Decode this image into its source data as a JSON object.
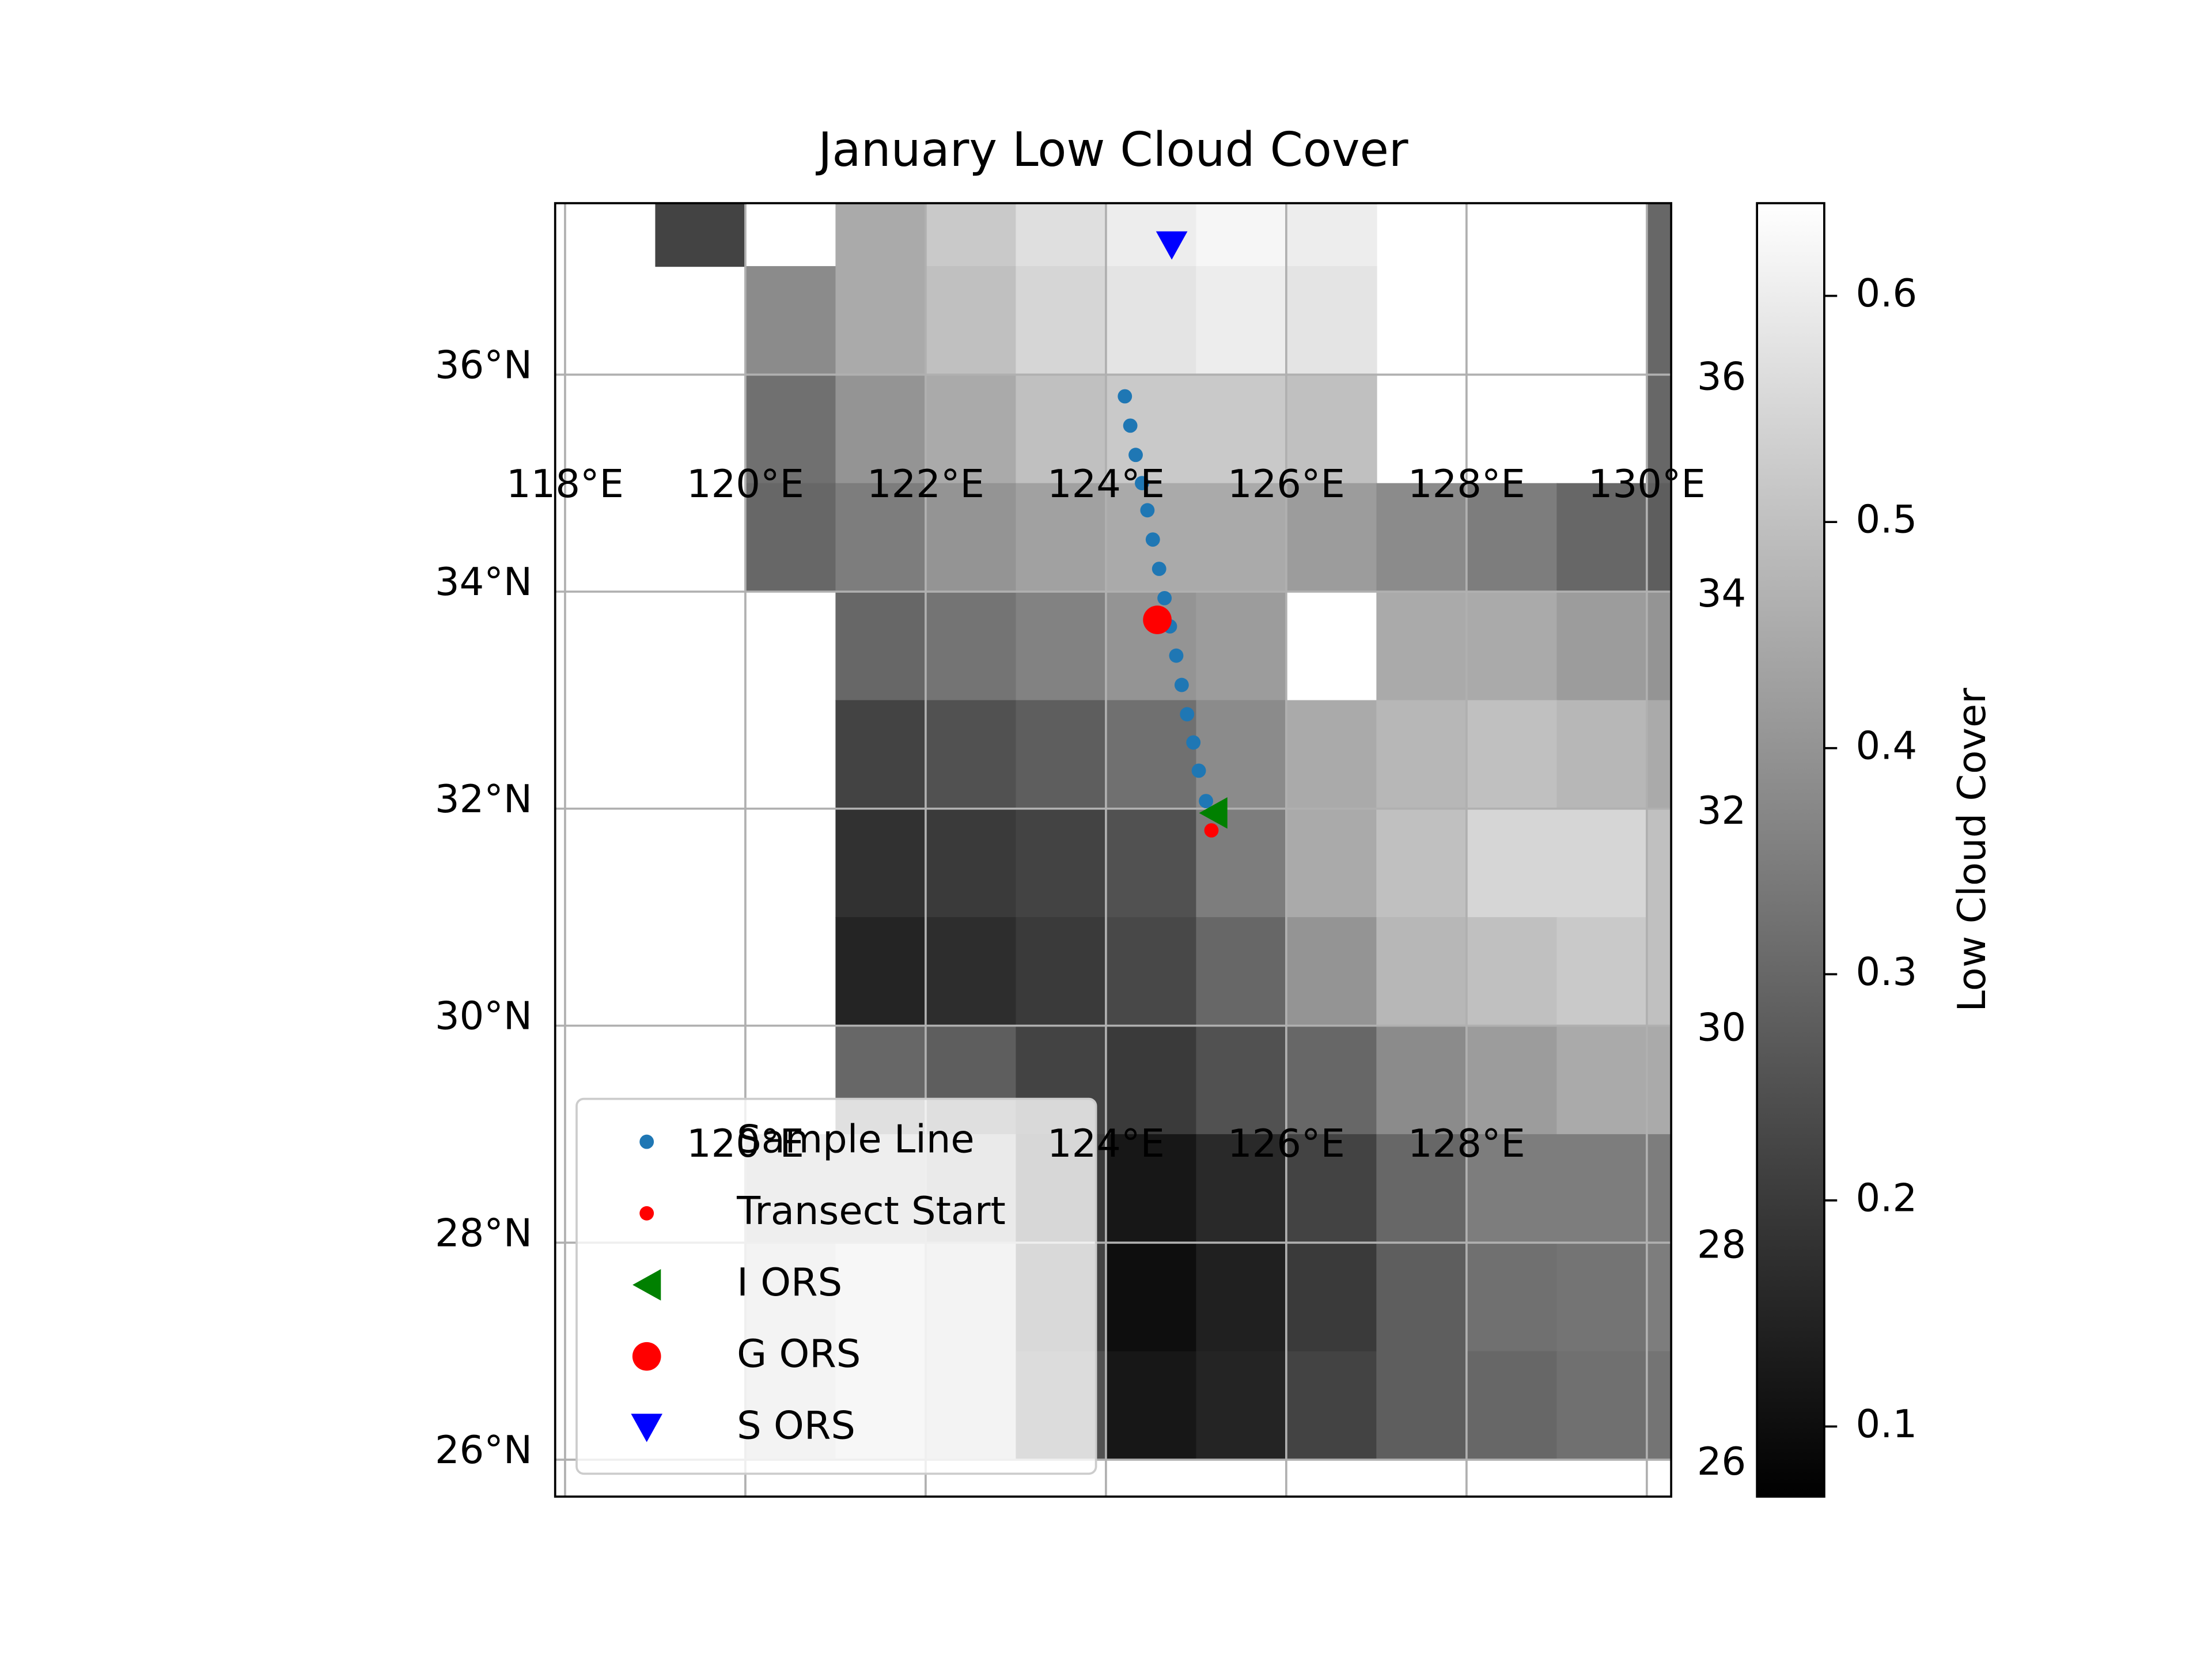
{
  "chart_data": {
    "type": "map",
    "title": "January Low Cloud Cover",
    "colorbar_label": "Low Cloud Cover",
    "xlim": [
      117.89,
      130.27
    ],
    "ylim": [
      25.66,
      37.58
    ],
    "xticks": [
      {
        "value": 118,
        "label": "118°E"
      },
      {
        "value": 120,
        "label": "120°E"
      },
      {
        "value": 122,
        "label": "122°E"
      },
      {
        "value": 124,
        "label": "124°E"
      },
      {
        "value": 126,
        "label": "126°E"
      },
      {
        "value": 128,
        "label": "128°E"
      },
      {
        "value": 130,
        "label": "130°E"
      }
    ],
    "xticks_bottom": [
      {
        "value": 120,
        "label": "120°E"
      },
      {
        "value": 124,
        "label": "124°E"
      },
      {
        "value": 126,
        "label": "126°E"
      },
      {
        "value": 128,
        "label": "128°E"
      }
    ],
    "yticks": [
      {
        "value": 26,
        "label": "26°N"
      },
      {
        "value": 28,
        "label": "28°N"
      },
      {
        "value": 30,
        "label": "30°N"
      },
      {
        "value": 32,
        "label": "32°N"
      },
      {
        "value": 34,
        "label": "34°N"
      },
      {
        "value": 36,
        "label": "36°N"
      }
    ],
    "y2ticks": [
      26,
      28,
      30,
      32,
      34,
      36
    ],
    "grid": true,
    "clim": [
      0.069,
      0.641
    ],
    "cticks": [
      0.1,
      0.2,
      0.3,
      0.4,
      0.5,
      0.6
    ],
    "cells": {
      "lons": [
        118,
        119,
        120,
        121,
        122,
        123,
        124,
        125,
        126,
        127,
        128,
        129,
        130
      ],
      "lats": [
        37,
        36,
        35,
        34,
        33,
        32,
        31,
        30,
        29,
        28,
        27,
        26
      ],
      "values": [
        [
          null,
          0.22,
          null,
          0.45,
          0.52,
          0.57,
          0.6,
          0.62,
          0.6,
          null,
          null,
          null,
          0.3
        ],
        [
          null,
          null,
          0.38,
          0.45,
          0.5,
          0.55,
          0.58,
          0.6,
          0.58,
          null,
          null,
          null,
          0.3
        ],
        [
          null,
          null,
          0.32,
          0.4,
          0.45,
          0.5,
          0.52,
          0.52,
          0.5,
          null,
          null,
          null,
          0.3
        ],
        [
          null,
          null,
          0.3,
          0.35,
          0.4,
          0.43,
          0.45,
          0.45,
          0.42,
          0.38,
          0.35,
          0.3,
          0.28
        ],
        [
          null,
          null,
          null,
          0.3,
          0.33,
          0.36,
          0.4,
          0.42,
          null,
          0.45,
          0.45,
          0.42,
          0.4
        ],
        [
          null,
          null,
          null,
          0.22,
          0.25,
          0.28,
          0.32,
          0.38,
          0.45,
          0.48,
          0.5,
          0.48,
          0.45
        ],
        [
          null,
          null,
          null,
          0.18,
          0.2,
          0.22,
          0.25,
          0.35,
          0.45,
          0.5,
          0.55,
          0.55,
          0.5
        ],
        [
          null,
          null,
          null,
          0.15,
          0.17,
          0.2,
          0.23,
          0.3,
          0.4,
          0.48,
          0.5,
          0.52,
          0.5
        ],
        [
          null,
          null,
          null,
          0.3,
          0.28,
          0.22,
          0.2,
          0.25,
          0.3,
          0.38,
          0.42,
          0.45,
          0.45
        ],
        [
          null,
          null,
          0.45,
          0.45,
          0.4,
          0.2,
          0.12,
          0.16,
          0.22,
          0.3,
          0.35,
          0.35,
          0.35
        ],
        [
          null,
          null,
          0.5,
          0.55,
          0.5,
          0.22,
          0.1,
          0.14,
          0.2,
          0.28,
          0.32,
          0.33,
          0.35
        ],
        [
          null,
          null,
          0.5,
          0.55,
          0.5,
          0.25,
          0.12,
          0.15,
          0.22,
          0.28,
          0.3,
          0.32,
          0.33
        ]
      ]
    },
    "series": [
      {
        "name": "Sample Line",
        "color": "#1f77b4",
        "marker": "circle",
        "size": 5,
        "x": [
          124.21,
          124.27,
          124.33,
          124.4,
          124.46,
          124.52,
          124.59,
          124.65,
          124.71,
          124.78,
          124.84,
          124.9,
          124.97,
          125.03,
          125.11
        ],
        "y": [
          35.8,
          35.53,
          35.26,
          35.0,
          34.75,
          34.48,
          34.21,
          33.94,
          33.68,
          33.41,
          33.14,
          32.87,
          32.61,
          32.35,
          32.07
        ]
      },
      {
        "name": "Transect Start",
        "color": "red",
        "marker": "circle",
        "size": 5,
        "x": [
          125.17
        ],
        "y": [
          31.8
        ]
      },
      {
        "name": "I ORS",
        "color": "green",
        "marker": "triangle-left",
        "size": 11,
        "x": [
          125.19
        ],
        "y": [
          31.96
        ]
      },
      {
        "name": "G ORS",
        "color": "red",
        "marker": "circle",
        "size": 10,
        "x": [
          124.57
        ],
        "y": [
          33.74
        ]
      },
      {
        "name": "S ORS",
        "color": "blue",
        "marker": "triangle-down",
        "size": 11,
        "x": [
          124.73
        ],
        "y": [
          37.19
        ]
      }
    ]
  }
}
